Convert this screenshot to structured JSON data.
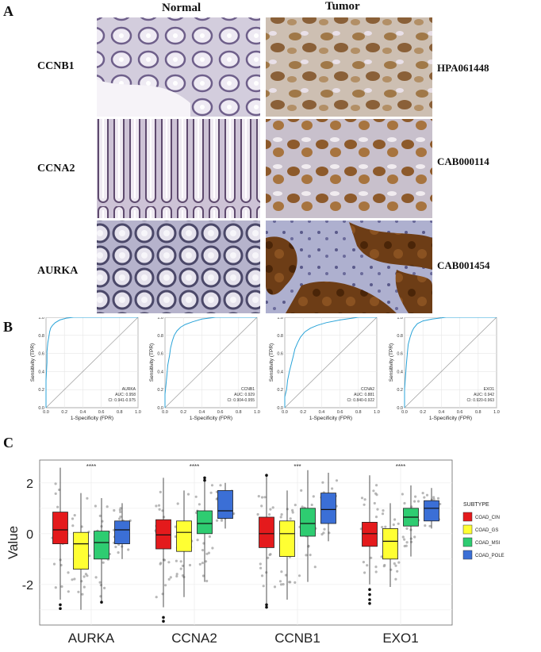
{
  "figure": {
    "panelA": {
      "letter": "A",
      "col_normal": "Normal",
      "col_tumor": "Tumor",
      "genes": [
        "CCNB1",
        "CCNA2",
        "AURKA"
      ],
      "antibodies": [
        "HPA061448",
        "CAB000114",
        "CAB001454"
      ]
    },
    "panelB": {
      "letter": "B"
    },
    "panelC": {
      "letter": "C"
    }
  },
  "chart_data": [
    {
      "type": "line",
      "panel": "B",
      "xlabel": "1-Specificity (FPR)",
      "ylabel": "Sensitivity (TPR)",
      "xlim": [
        0,
        1
      ],
      "ylim": [
        0,
        1
      ],
      "xticks": [
        "0.0",
        "0.2",
        "0.4",
        "0.6",
        "0.8",
        "1.0"
      ],
      "yticks": [
        "0.0",
        "0.2",
        "0.4",
        "0.6",
        "0.8",
        "1.0"
      ],
      "grid": true,
      "series": [
        {
          "name": "AURKA",
          "auc": "AUC: 0.958",
          "ci": "CI: 0.941-0.975",
          "x": [
            0,
            0,
            0.01,
            0.01,
            0.02,
            0.03,
            0.04,
            0.05,
            0.07,
            0.1,
            0.15,
            0.22,
            0.3,
            0.5,
            1
          ],
          "y": [
            0,
            0.3,
            0.5,
            0.62,
            0.72,
            0.78,
            0.84,
            0.88,
            0.91,
            0.94,
            0.97,
            0.99,
            1,
            1,
            1
          ]
        },
        {
          "name": "CCNB1",
          "auc": "AUC: 0.929",
          "ci": "CI: 0.904-0.955",
          "x": [
            0,
            0,
            0.01,
            0.02,
            0.03,
            0.05,
            0.06,
            0.08,
            0.1,
            0.13,
            0.17,
            0.22,
            0.3,
            0.4,
            0.55,
            1
          ],
          "y": [
            0,
            0.15,
            0.25,
            0.35,
            0.47,
            0.58,
            0.66,
            0.74,
            0.8,
            0.85,
            0.89,
            0.92,
            0.95,
            0.98,
            1,
            1
          ]
        },
        {
          "name": "CCNA2",
          "auc": "AUC: 0.881",
          "ci": "CI: 0.840-0.922",
          "x": [
            0,
            0,
            0.02,
            0.03,
            0.05,
            0.07,
            0.09,
            0.11,
            0.14,
            0.17,
            0.22,
            0.28,
            0.35,
            0.45,
            0.6,
            0.8,
            1
          ],
          "y": [
            0,
            0.12,
            0.2,
            0.3,
            0.4,
            0.48,
            0.56,
            0.65,
            0.72,
            0.78,
            0.84,
            0.88,
            0.91,
            0.94,
            0.97,
            1,
            1
          ]
        },
        {
          "name": "EXO1",
          "auc": "AUC: 0.942",
          "ci": "CI: 0.920-0.963",
          "x": [
            0,
            0,
            0.01,
            0.02,
            0.03,
            0.04,
            0.06,
            0.08,
            0.1,
            0.14,
            0.2,
            0.3,
            0.45,
            1
          ],
          "y": [
            0,
            0.2,
            0.35,
            0.48,
            0.6,
            0.7,
            0.78,
            0.84,
            0.88,
            0.93,
            0.96,
            0.98,
            1,
            1
          ]
        }
      ]
    },
    {
      "type": "box",
      "panel": "C",
      "ylabel": "Value",
      "ylim": [
        -3.6,
        2.9
      ],
      "yticks": [
        -2,
        0,
        2
      ],
      "categories": [
        "AURKA",
        "CCNA2",
        "CCNB1",
        "EXO1"
      ],
      "significance": [
        "****",
        "****",
        "***",
        "****"
      ],
      "legend_title": "SUBTYPE",
      "legend_position": "right",
      "grid": true,
      "series": [
        {
          "name": "COAD_CIN",
          "color": "#e41a1c",
          "boxes": [
            {
              "q1": -0.4,
              "median": 0.15,
              "q3": 0.85,
              "lo": -2.6,
              "hi": 2.6
            },
            {
              "q1": -0.6,
              "median": -0.05,
              "q3": 0.55,
              "lo": -2.9,
              "hi": 2.2
            },
            {
              "q1": -0.55,
              "median": 0.0,
              "q3": 0.65,
              "lo": -2.9,
              "hi": 2.3
            },
            {
              "q1": -0.5,
              "median": 0.0,
              "q3": 0.45,
              "lo": -2.0,
              "hi": 2.3
            }
          ]
        },
        {
          "name": "COAD_GS",
          "color": "#ffff33",
          "boxes": [
            {
              "q1": -1.4,
              "median": -0.4,
              "q3": 0.05,
              "lo": -3.0,
              "hi": 1.6
            },
            {
              "q1": -0.7,
              "median": 0.05,
              "q3": 0.5,
              "lo": -2.5,
              "hi": 1.7
            },
            {
              "q1": -0.9,
              "median": 0.0,
              "q3": 0.5,
              "lo": -2.6,
              "hi": 1.7
            },
            {
              "q1": -1.0,
              "median": -0.3,
              "q3": 0.2,
              "lo": -2.1,
              "hi": 1.2
            }
          ]
        },
        {
          "name": "COAD_MSI",
          "color": "#2ecc71",
          "boxes": [
            {
              "q1": -1.0,
              "median": -0.35,
              "q3": 0.1,
              "lo": -2.7,
              "hi": 1.4
            },
            {
              "q1": 0.0,
              "median": 0.4,
              "q3": 0.9,
              "lo": -1.9,
              "hi": 2.2
            },
            {
              "q1": -0.1,
              "median": 0.4,
              "q3": 1.0,
              "lo": -1.9,
              "hi": 2.5
            },
            {
              "q1": 0.3,
              "median": 0.65,
              "q3": 1.0,
              "lo": -0.9,
              "hi": 1.9
            }
          ]
        },
        {
          "name": "COAD_POLE",
          "color": "#3b6fd6",
          "boxes": [
            {
              "q1": -0.4,
              "median": 0.15,
              "q3": 0.5,
              "lo": -1.0,
              "hi": 1.2
            },
            {
              "q1": 0.6,
              "median": 0.9,
              "q3": 1.7,
              "lo": 0.2,
              "hi": 2.0
            },
            {
              "q1": 0.4,
              "median": 0.95,
              "q3": 1.6,
              "lo": -0.3,
              "hi": 2.4
            },
            {
              "q1": 0.5,
              "median": 1.0,
              "q3": 1.3,
              "lo": 0.2,
              "hi": 1.8
            }
          ]
        }
      ]
    }
  ]
}
